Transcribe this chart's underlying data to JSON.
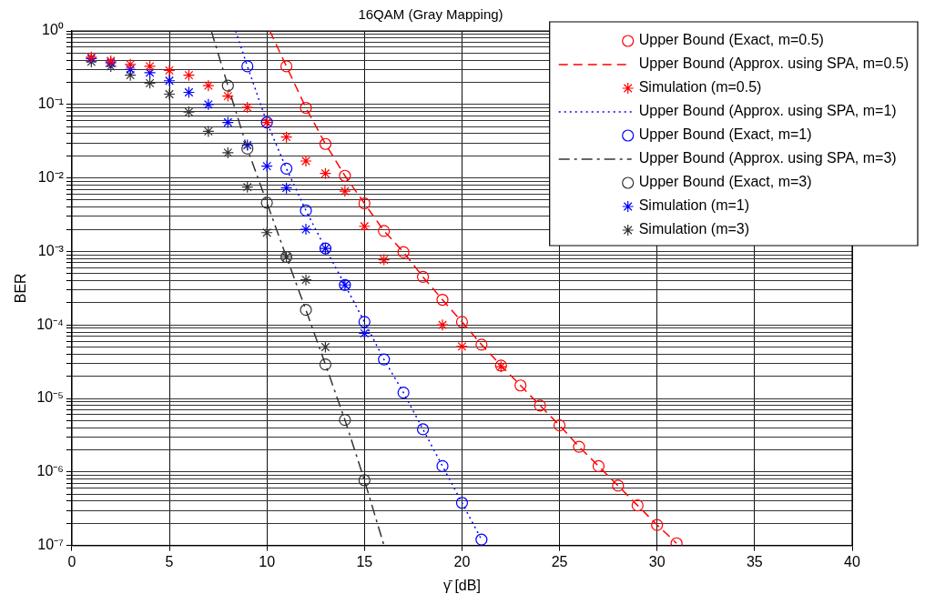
{
  "chart_data": {
    "type": "line",
    "title": "16QAM (Gray Mapping)",
    "xlabel": "γ̄ [dB]",
    "ylabel": "BER",
    "log": "y",
    "grid": true,
    "legend": "top right",
    "xlim": [
      0,
      40
    ],
    "xticks": [
      0,
      5,
      10,
      15,
      20,
      25,
      30,
      35,
      40
    ],
    "ylim": [
      1e-07,
      1
    ],
    "yticks": [
      {
        "value": 1e-07,
        "label": "10⁻⁷"
      },
      {
        "value": 2e-07,
        "label": null
      },
      {
        "value": 3e-07,
        "label": null
      },
      {
        "value": 4e-07,
        "label": null
      },
      {
        "value": 5e-07,
        "label": null
      },
      {
        "value": 6e-07,
        "label": null
      },
      {
        "value": 7e-07,
        "label": null
      },
      {
        "value": 8e-07,
        "label": null
      },
      {
        "value": 9e-07,
        "label": null
      },
      {
        "value": 1e-06,
        "label": "10⁻⁶"
      },
      {
        "value": 2e-06,
        "label": null
      },
      {
        "value": 3e-06,
        "label": null
      },
      {
        "value": 4e-06,
        "label": null
      },
      {
        "value": 5e-06,
        "label": null
      },
      {
        "value": 6e-06,
        "label": null
      },
      {
        "value": 7e-06,
        "label": null
      },
      {
        "value": 8e-06,
        "label": null
      },
      {
        "value": 9e-06,
        "label": null
      },
      {
        "value": 1e-05,
        "label": "10⁻⁵"
      },
      {
        "value": 2e-05,
        "label": null
      },
      {
        "value": 3e-05,
        "label": null
      },
      {
        "value": 4e-05,
        "label": null
      },
      {
        "value": 5e-05,
        "label": null
      },
      {
        "value": 6e-05,
        "label": null
      },
      {
        "value": 7e-05,
        "label": null
      },
      {
        "value": 8e-05,
        "label": null
      },
      {
        "value": 9e-05,
        "label": null
      },
      {
        "value": 0.0001,
        "label": "10⁻⁴"
      },
      {
        "value": 0.0002,
        "label": null
      },
      {
        "value": 0.0003,
        "label": null
      },
      {
        "value": 0.0004,
        "label": null
      },
      {
        "value": 0.0005,
        "label": null
      },
      {
        "value": 0.0006,
        "label": null
      },
      {
        "value": 0.0007,
        "label": null
      },
      {
        "value": 0.0008,
        "label": null
      },
      {
        "value": 0.0009,
        "label": null
      },
      {
        "value": 0.001,
        "label": "10⁻³"
      },
      {
        "value": 0.002,
        "label": null
      },
      {
        "value": 0.003,
        "label": null
      },
      {
        "value": 0.004,
        "label": null
      },
      {
        "value": 0.005,
        "label": null
      },
      {
        "value": 0.006,
        "label": null
      },
      {
        "value": 0.007,
        "label": null
      },
      {
        "value": 0.008,
        "label": null
      },
      {
        "value": 0.009,
        "label": null
      },
      {
        "value": 0.01,
        "label": "10⁻²"
      },
      {
        "value": 0.02,
        "label": null
      },
      {
        "value": 0.03,
        "label": null
      },
      {
        "value": 0.04,
        "label": null
      },
      {
        "value": 0.05,
        "label": null
      },
      {
        "value": 0.06,
        "label": null
      },
      {
        "value": 0.07,
        "label": null
      },
      {
        "value": 0.08,
        "label": null
      },
      {
        "value": 0.09,
        "label": null
      },
      {
        "value": 0.1,
        "label": "10⁻¹"
      },
      {
        "value": 0.2,
        "label": null
      },
      {
        "value": 0.3,
        "label": null
      },
      {
        "value": 0.4,
        "label": null
      },
      {
        "value": 0.5,
        "label": null
      },
      {
        "value": 0.6,
        "label": null
      },
      {
        "value": 0.7,
        "label": null
      },
      {
        "value": 0.8,
        "label": null
      },
      {
        "value": 0.9,
        "label": null
      },
      {
        "value": 1,
        "label": "10⁰"
      }
    ],
    "series": [
      {
        "name": "Upper Bound (Exact, m=0.5)",
        "color": "#ff0000",
        "type": "scatter",
        "marker": "circle",
        "x": [
          11,
          12,
          13,
          14,
          15,
          16,
          17,
          18,
          19,
          20,
          21,
          22,
          23,
          24,
          25,
          26,
          27,
          28,
          29,
          30,
          31
        ],
        "values": [
          0.33,
          0.09,
          0.029,
          0.0107,
          0.0045,
          0.0019,
          0.00098,
          0.00045,
          0.00022,
          0.00011,
          5.4e-05,
          2.8e-05,
          1.5e-05,
          8e-06,
          4.3e-06,
          2.2e-06,
          1.2e-06,
          6.5e-07,
          3.5e-07,
          1.9e-07,
          1.07e-07
        ]
      },
      {
        "name": "Upper Bound (Approx. using SPA, m=0.5)",
        "color": "#ff0000",
        "type": "line",
        "marker": "none",
        "line_style": "dashed",
        "x": [
          10.15,
          11,
          12,
          13,
          14,
          15,
          16,
          17,
          18,
          19,
          20,
          21,
          22,
          23,
          24,
          25,
          26,
          27,
          28,
          29,
          30,
          31
        ],
        "values": [
          1,
          0.33,
          0.09,
          0.029,
          0.0107,
          0.0045,
          0.0019,
          0.00098,
          0.00045,
          0.00022,
          0.00011,
          5.4e-05,
          2.8e-05,
          1.5e-05,
          8e-06,
          4.3e-06,
          2.2e-06,
          1.2e-06,
          6.5e-07,
          3.5e-07,
          1.9e-07,
          1.07e-07
        ]
      },
      {
        "name": "Simulation (m=0.5)",
        "color": "#ff0000",
        "type": "scatter",
        "marker": "cross",
        "x": [
          1,
          2,
          3,
          4,
          5,
          6,
          7,
          8,
          9,
          10,
          11,
          12,
          13,
          14,
          15,
          16,
          19,
          20,
          22
        ],
        "values": [
          0.44,
          0.39,
          0.35,
          0.33,
          0.29,
          0.25,
          0.18,
          0.13,
          0.091,
          0.057,
          0.036,
          0.017,
          0.0115,
          0.0066,
          0.0022,
          0.00077,
          0.0001,
          5.1e-05,
          2.7e-05
        ]
      },
      {
        "name": "Upper Bound (Approx. using SPA, m=1)",
        "color": "#0000ff",
        "type": "line",
        "marker": "none",
        "line_style": "dotted",
        "x": [
          8.4,
          9,
          10,
          11,
          12,
          13,
          14,
          15,
          16,
          17,
          18,
          19,
          20,
          21
        ],
        "values": [
          1,
          0.33,
          0.057,
          0.0134,
          0.0036,
          0.0011,
          0.00035,
          0.00011,
          3.4e-05,
          1.2e-05,
          3.8e-06,
          1.2e-06,
          3.8e-07,
          1.2e-07
        ]
      },
      {
        "name": "Upper Bound (Exact, m=1)",
        "color": "#0000ff",
        "type": "scatter",
        "marker": "circle",
        "x": [
          9,
          10,
          11,
          12,
          13,
          14,
          15,
          16,
          17,
          18,
          19,
          20,
          21
        ],
        "values": [
          0.33,
          0.057,
          0.0134,
          0.0036,
          0.0011,
          0.00035,
          0.00011,
          3.4e-05,
          1.2e-05,
          3.8e-06,
          1.2e-06,
          3.8e-07,
          1.2e-07
        ]
      },
      {
        "name": "Upper Bound (Approx. using SPA, m=3)",
        "color": "#333333",
        "type": "line",
        "marker": "none",
        "line_style": "dashdot",
        "x": [
          7.15,
          8,
          9,
          10,
          11,
          12,
          13,
          14,
          15,
          16
        ],
        "values": [
          1,
          0.18,
          0.025,
          0.0046,
          0.00084,
          0.00016,
          2.9e-05,
          5.1e-06,
          7.7e-07,
          1e-07
        ]
      },
      {
        "name": "Upper Bound (Exact, m=3)",
        "color": "#333333",
        "type": "scatter",
        "marker": "circle",
        "x": [
          8,
          9,
          10,
          11,
          12,
          13,
          14,
          15
        ],
        "values": [
          0.18,
          0.025,
          0.0046,
          0.00084,
          0.00016,
          2.9e-05,
          5.1e-06,
          7.7e-07
        ]
      },
      {
        "name": "Simulation (m=1)",
        "color": "#0000ff",
        "type": "scatter",
        "marker": "cross",
        "x": [
          1,
          2,
          3,
          4,
          5,
          6,
          7,
          8,
          9,
          10,
          11,
          12,
          13,
          14,
          15
        ],
        "values": [
          0.42,
          0.37,
          0.3,
          0.27,
          0.21,
          0.146,
          0.1,
          0.057,
          0.028,
          0.0145,
          0.0073,
          0.002,
          0.0011,
          0.00035,
          7.7e-05
        ]
      },
      {
        "name": "Simulation (m=3)",
        "color": "#333333",
        "type": "scatter",
        "marker": "cross",
        "x": [
          1,
          2,
          3,
          4,
          5,
          6,
          7,
          8,
          9,
          10,
          11,
          12,
          13
        ],
        "values": [
          0.38,
          0.33,
          0.25,
          0.195,
          0.138,
          0.079,
          0.043,
          0.022,
          0.0075,
          0.0018,
          0.00084,
          0.00041,
          5e-05
        ]
      }
    ]
  }
}
